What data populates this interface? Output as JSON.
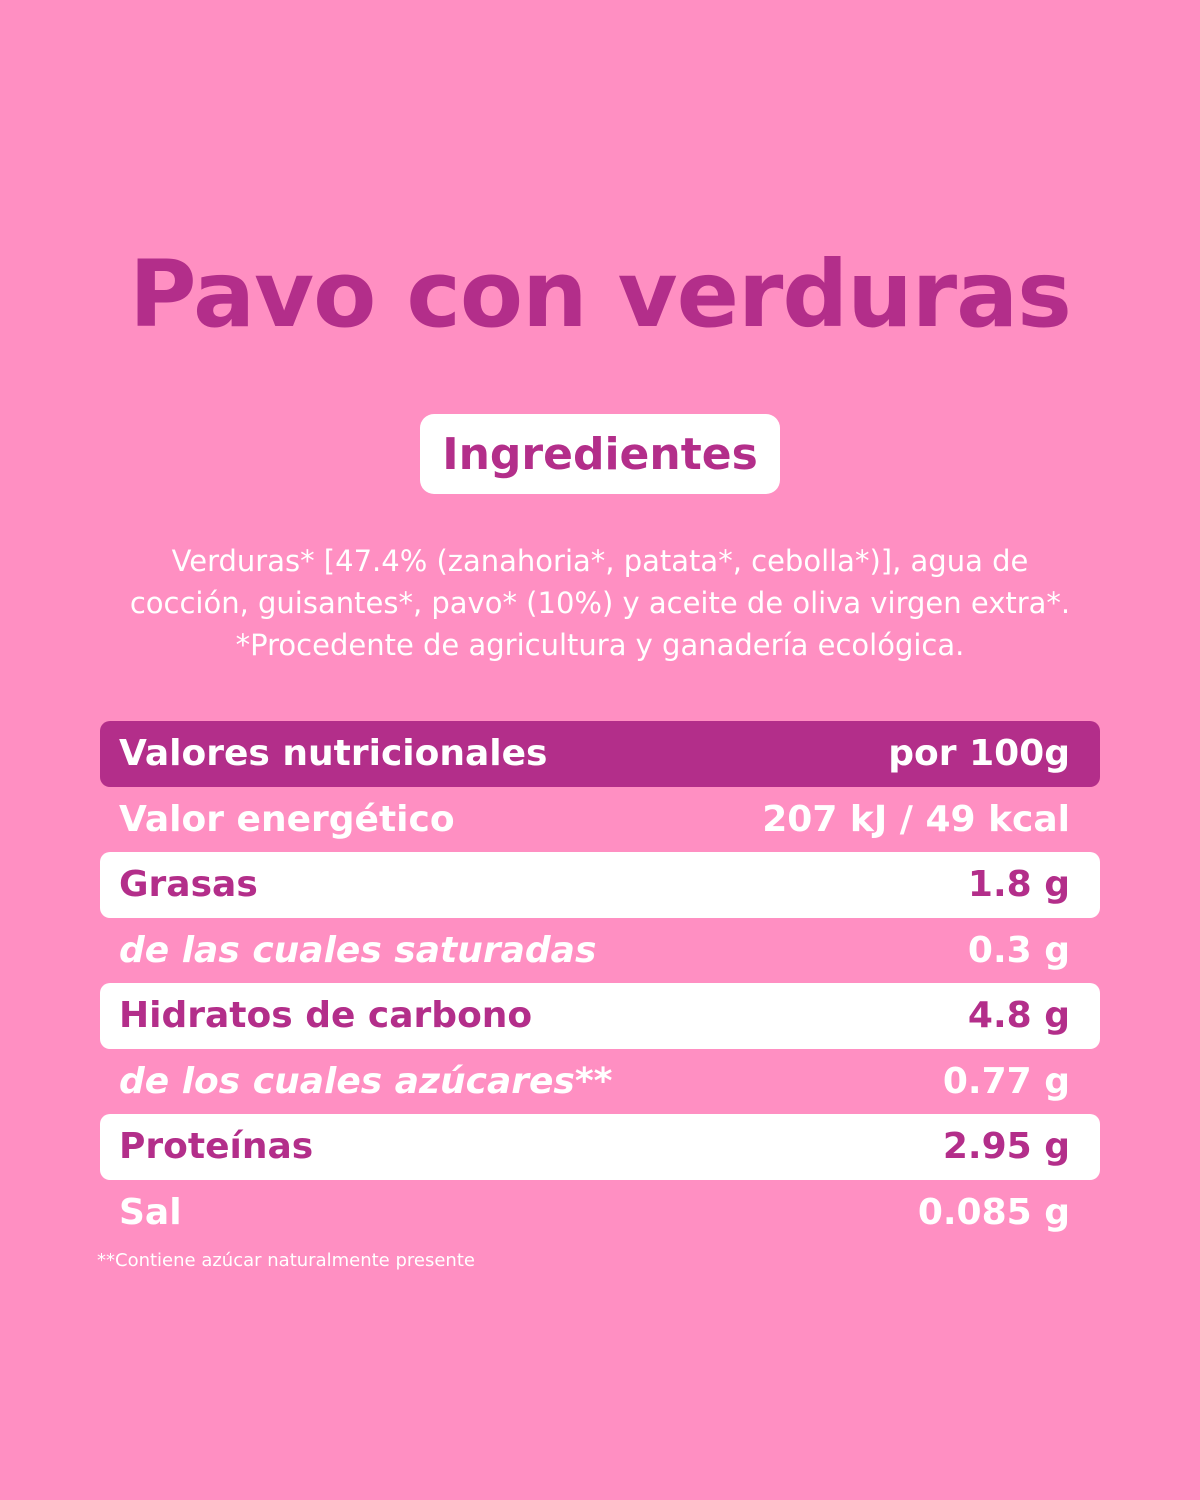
{
  "title": "Pavo con verduras",
  "ingredients_badge": "Ingredientes",
  "ingredients_lines": [
    "Verduras* [47.4% (zanahoria*, patata*, cebolla*)], agua de",
    "cocción, guisantes*, pavo* (10%) y aceite de oliva virgen extra*.",
    "*Procedente de agricultura y ganadería ecológica."
  ],
  "nutrition": {
    "header": {
      "label": "Valores nutricionales",
      "value": "por 100g"
    },
    "rows": [
      {
        "label": "Valor energético",
        "value": "207 kJ / 49 kcal"
      },
      {
        "label": "Grasas",
        "value": "1.8 g"
      },
      {
        "label": "de las cuales saturadas",
        "value": "0.3 g"
      },
      {
        "label": "Hidratos de carbono",
        "value": "4.8 g"
      },
      {
        "label": "de los cuales azúcares**",
        "value": "0.77 g"
      },
      {
        "label": "Proteínas",
        "value": "2.95 g"
      },
      {
        "label": "Sal",
        "value": "0.085 g"
      }
    ]
  },
  "footnote": "**Contiene azúcar naturalmente presente",
  "colors": {
    "background": "#FF8FC2",
    "accent": "#B32E8A",
    "white": "#FFFFFF"
  }
}
